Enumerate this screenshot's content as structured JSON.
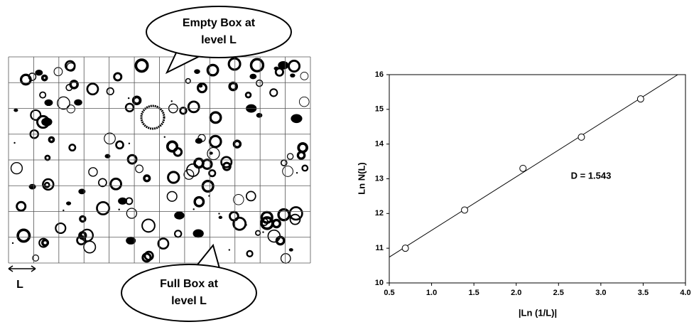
{
  "figure": {
    "callouts": [
      [
        "Empty Box at",
        "level L"
      ],
      [
        "Full Box at",
        "level L"
      ]
    ],
    "scale_label": "L"
  },
  "chart_data": {
    "type": "scatter",
    "x": [
      0.69,
      1.39,
      2.08,
      2.77,
      3.47
    ],
    "values": [
      11.0,
      12.1,
      13.3,
      14.2,
      15.3
    ],
    "xlabel": "|Ln (1/L)|",
    "ylabel": "Ln N(L)",
    "annotation": "D = 1.543",
    "xlim": [
      0.5,
      4.0
    ],
    "xticks": [
      {
        "value": 0.5,
        "label": "0.5"
      },
      {
        "value": 1.0,
        "label": "1.0"
      },
      {
        "value": 1.5,
        "label": "1.5"
      },
      {
        "value": 2.0,
        "label": "2.0"
      },
      {
        "value": 2.5,
        "label": "2.5"
      },
      {
        "value": 3.0,
        "label": "3.0"
      },
      {
        "value": 3.5,
        "label": "3.5"
      },
      {
        "value": 4.0,
        "label": "4.0"
      }
    ],
    "ylim": [
      10,
      16
    ],
    "yticks": [
      10,
      11,
      12,
      13,
      14,
      15,
      16
    ]
  }
}
